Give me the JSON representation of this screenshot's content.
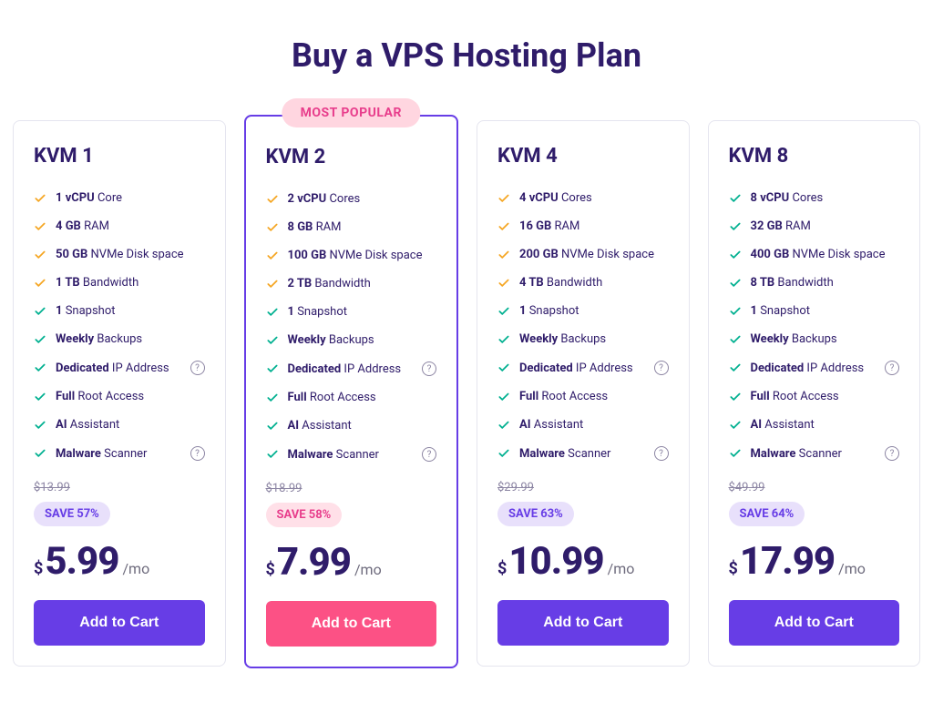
{
  "title": "Buy a VPS Hosting Plan",
  "colors": {
    "brand_purple": "#673de6",
    "brand_pink": "#fc5185",
    "text_heading": "#2f1c6a",
    "check_teal": "#00b090",
    "check_amber": "#f5a623"
  },
  "badge_label": "MOST POPULAR",
  "cta_label": "Add to Cart",
  "period_label": "/mo",
  "currency": "$",
  "plans": [
    {
      "name": "KVM 1",
      "featured": false,
      "old_price": "$13.99",
      "save_label": "SAVE 57%",
      "save_style": "purple",
      "price": "5.99",
      "cta_style": "purple",
      "features": [
        {
          "bold": "1 vCPU",
          "rest": " Core",
          "check": "amber",
          "help": false
        },
        {
          "bold": "4 GB",
          "rest": " RAM",
          "check": "amber",
          "help": false
        },
        {
          "bold": "50 GB",
          "rest": " NVMe Disk space",
          "check": "amber",
          "help": false
        },
        {
          "bold": "1 TB",
          "rest": " Bandwidth",
          "check": "amber",
          "help": false
        },
        {
          "bold": "1",
          "rest": " Snapshot",
          "check": "teal",
          "help": false
        },
        {
          "bold": "Weekly",
          "rest": " Backups",
          "check": "teal",
          "help": false
        },
        {
          "bold": "Dedicated",
          "rest": " IP Address",
          "check": "teal",
          "help": true
        },
        {
          "bold": "Full",
          "rest": " Root Access",
          "check": "teal",
          "help": false
        },
        {
          "bold": "AI",
          "rest": " Assistant",
          "check": "teal",
          "help": false
        },
        {
          "bold": "Malware",
          "rest": " Scanner",
          "check": "teal",
          "help": true
        }
      ]
    },
    {
      "name": "KVM 2",
      "featured": true,
      "old_price": "$18.99",
      "save_label": "SAVE 58%",
      "save_style": "pink",
      "price": "7.99",
      "cta_style": "pink",
      "features": [
        {
          "bold": "2 vCPU",
          "rest": " Cores",
          "check": "amber",
          "help": false
        },
        {
          "bold": "8 GB",
          "rest": " RAM",
          "check": "amber",
          "help": false
        },
        {
          "bold": "100 GB",
          "rest": " NVMe Disk space",
          "check": "amber",
          "help": false
        },
        {
          "bold": "2 TB",
          "rest": " Bandwidth",
          "check": "amber",
          "help": false
        },
        {
          "bold": "1",
          "rest": " Snapshot",
          "check": "teal",
          "help": false
        },
        {
          "bold": "Weekly",
          "rest": " Backups",
          "check": "teal",
          "help": false
        },
        {
          "bold": "Dedicated",
          "rest": " IP Address",
          "check": "teal",
          "help": true
        },
        {
          "bold": "Full",
          "rest": " Root Access",
          "check": "teal",
          "help": false
        },
        {
          "bold": "AI",
          "rest": " Assistant",
          "check": "teal",
          "help": false
        },
        {
          "bold": "Malware",
          "rest": " Scanner",
          "check": "teal",
          "help": true
        }
      ]
    },
    {
      "name": "KVM 4",
      "featured": false,
      "old_price": "$29.99",
      "save_label": "SAVE 63%",
      "save_style": "purple",
      "price": "10.99",
      "cta_style": "purple",
      "features": [
        {
          "bold": "4 vCPU",
          "rest": " Cores",
          "check": "amber",
          "help": false
        },
        {
          "bold": "16 GB",
          "rest": " RAM",
          "check": "amber",
          "help": false
        },
        {
          "bold": "200 GB",
          "rest": " NVMe Disk space",
          "check": "amber",
          "help": false
        },
        {
          "bold": "4 TB",
          "rest": " Bandwidth",
          "check": "amber",
          "help": false
        },
        {
          "bold": "1",
          "rest": " Snapshot",
          "check": "teal",
          "help": false
        },
        {
          "bold": "Weekly",
          "rest": " Backups",
          "check": "teal",
          "help": false
        },
        {
          "bold": "Dedicated",
          "rest": " IP Address",
          "check": "teal",
          "help": true
        },
        {
          "bold": "Full",
          "rest": " Root Access",
          "check": "teal",
          "help": false
        },
        {
          "bold": "AI",
          "rest": " Assistant",
          "check": "teal",
          "help": false
        },
        {
          "bold": "Malware",
          "rest": " Scanner",
          "check": "teal",
          "help": true
        }
      ]
    },
    {
      "name": "KVM 8",
      "featured": false,
      "old_price": "$49.99",
      "save_label": "SAVE 64%",
      "save_style": "purple",
      "price": "17.99",
      "cta_style": "purple",
      "features": [
        {
          "bold": "8 vCPU",
          "rest": " Cores",
          "check": "teal",
          "help": false
        },
        {
          "bold": "32 GB",
          "rest": " RAM",
          "check": "teal",
          "help": false
        },
        {
          "bold": "400 GB",
          "rest": " NVMe Disk space",
          "check": "teal",
          "help": false
        },
        {
          "bold": "8 TB",
          "rest": " Bandwidth",
          "check": "teal",
          "help": false
        },
        {
          "bold": "1",
          "rest": " Snapshot",
          "check": "teal",
          "help": false
        },
        {
          "bold": "Weekly",
          "rest": " Backups",
          "check": "teal",
          "help": false
        },
        {
          "bold": "Dedicated",
          "rest": " IP Address",
          "check": "teal",
          "help": true
        },
        {
          "bold": "Full",
          "rest": " Root Access",
          "check": "teal",
          "help": false
        },
        {
          "bold": "AI",
          "rest": " Assistant",
          "check": "teal",
          "help": false
        },
        {
          "bold": "Malware",
          "rest": " Scanner",
          "check": "teal",
          "help": true
        }
      ]
    }
  ]
}
